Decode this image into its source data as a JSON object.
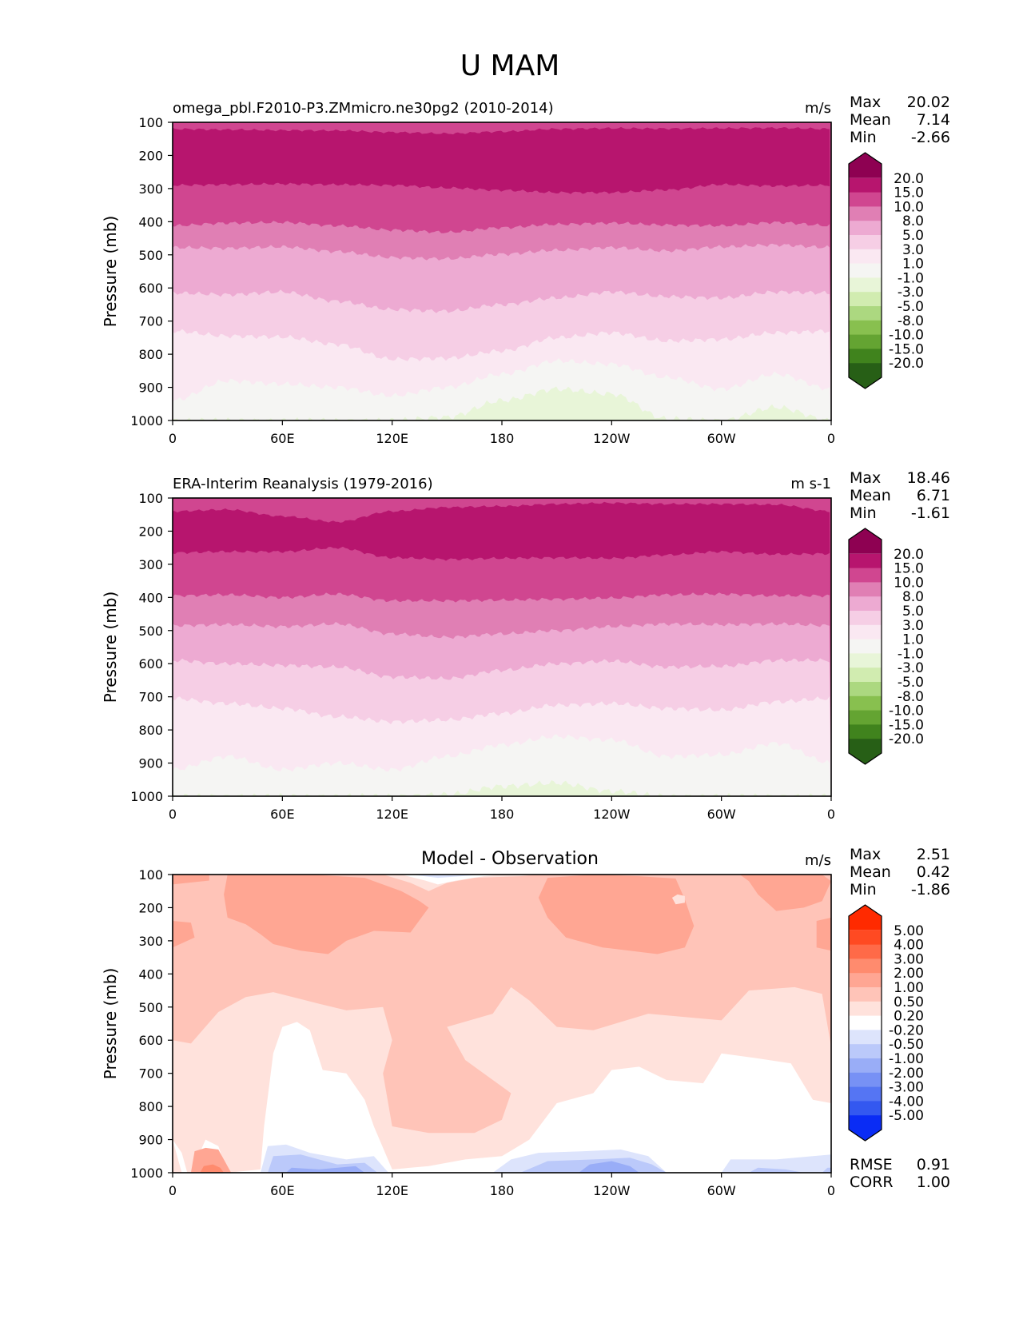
{
  "figure": {
    "title": "U MAM"
  },
  "chart_data": [
    {
      "type": "heatmap",
      "panel": "test",
      "title": "omega_pbl.F2010-P3.ZMmicro.ne30pg2 (2010-2014)",
      "units": "m/s",
      "xlabel": "",
      "ylabel": "Pressure (mb)",
      "xticks": [
        "0",
        "60E",
        "120E",
        "180",
        "120W",
        "60W",
        "0"
      ],
      "xlim": [
        0,
        360
      ],
      "yticks": [
        "100",
        "200",
        "300",
        "400",
        "500",
        "600",
        "700",
        "800",
        "900",
        "1000"
      ],
      "ylim": [
        1000,
        100
      ],
      "stats": {
        "Max": "20.02",
        "Mean": "7.14",
        "Min": "-2.66"
      },
      "colorbar": {
        "levels": [
          "20.0",
          "15.0",
          "10.0",
          "8.0",
          "5.0",
          "3.0",
          "1.0",
          "-1.0",
          "-3.0",
          "-5.0",
          "-8.0",
          "-10.0",
          "-15.0",
          "-20.0"
        ],
        "colors": [
          "#8e0152",
          "#b7156e",
          "#d04690",
          "#e07fb4",
          "#edaad2",
          "#f6cee5",
          "#fae8f2",
          "#f5f5f3",
          "#e8f5d8",
          "#d1ecb0",
          "#acd880",
          "#88c04f",
          "#64a432",
          "#40831d",
          "#275f16"
        ]
      },
      "contour_bands_x": [
        0,
        30,
        60,
        90,
        120,
        150,
        180,
        210,
        240,
        270,
        300,
        330,
        360
      ],
      "band_boundaries": [
        {
          "level": "15.0",
          "p": [
            120,
            122,
            124,
            125,
            130,
            134,
            128,
            120,
            118,
            119,
            118,
            117,
            120
          ]
        },
        {
          "level": "10.0",
          "p": [
            290,
            288,
            286,
            288,
            290,
            298,
            305,
            312,
            312,
            304,
            288,
            292,
            290
          ]
        },
        {
          "level": "8.0",
          "p": [
            412,
            404,
            402,
            412,
            425,
            432,
            418,
            408,
            404,
            410,
            412,
            402,
            412
          ]
        },
        {
          "level": "5.0",
          "p": [
            478,
            480,
            476,
            490,
            508,
            512,
            498,
            486,
            478,
            488,
            476,
            470,
            478
          ]
        },
        {
          "level": "3.0",
          "p": [
            615,
            620,
            612,
            640,
            665,
            670,
            650,
            630,
            612,
            626,
            630,
            612,
            615
          ]
        },
        {
          "level": "1.0",
          "p": [
            730,
            745,
            748,
            770,
            815,
            812,
            790,
            750,
            735,
            760,
            755,
            735,
            730
          ]
        },
        {
          "level": "-1.0",
          "p": [
            940,
            880,
            890,
            900,
            925,
            900,
            860,
            820,
            830,
            870,
            905,
            860,
            905
          ]
        },
        {
          "level": "-3.0",
          "p": [
            1000,
            1000,
            1000,
            1000,
            1000,
            990,
            940,
            905,
            920,
            995,
            1000,
            960,
            1000
          ]
        }
      ]
    },
    {
      "type": "heatmap",
      "panel": "reference",
      "title": "ERA-Interim Reanalysis (1979-2016)",
      "units": "m s-1",
      "xlabel": "",
      "ylabel": "Pressure (mb)",
      "xticks": [
        "0",
        "60E",
        "120E",
        "180",
        "120W",
        "60W",
        "0"
      ],
      "xlim": [
        0,
        360
      ],
      "yticks": [
        "100",
        "200",
        "300",
        "400",
        "500",
        "600",
        "700",
        "800",
        "900",
        "1000"
      ],
      "ylim": [
        1000,
        100
      ],
      "stats": {
        "Max": "18.46",
        "Mean": "6.71",
        "Min": "-1.61"
      },
      "colorbar": {
        "levels": [
          "20.0",
          "15.0",
          "10.0",
          "8.0",
          "5.0",
          "3.0",
          "1.0",
          "-1.0",
          "-3.0",
          "-5.0",
          "-8.0",
          "-10.0",
          "-15.0",
          "-20.0"
        ],
        "colors": [
          "#8e0152",
          "#b7156e",
          "#d04690",
          "#e07fb4",
          "#edaad2",
          "#f6cee5",
          "#fae8f2",
          "#f5f5f3",
          "#e8f5d8",
          "#d1ecb0",
          "#acd880",
          "#88c04f",
          "#64a432",
          "#40831d",
          "#275f16"
        ]
      },
      "contour_bands_x": [
        0,
        30,
        60,
        90,
        120,
        150,
        180,
        210,
        240,
        270,
        300,
        330,
        360
      ],
      "band_boundaries": [
        {
          "level": "15.0",
          "p": [
            140,
            135,
            155,
            172,
            140,
            128,
            125,
            118,
            115,
            118,
            118,
            120,
            140
          ]
        },
        {
          "level": "10.0",
          "p": [
            265,
            262,
            262,
            250,
            280,
            285,
            282,
            280,
            282,
            272,
            262,
            270,
            268
          ]
        },
        {
          "level": "8.0",
          "p": [
            395,
            392,
            400,
            390,
            410,
            410,
            408,
            405,
            402,
            392,
            390,
            395,
            395
          ]
        },
        {
          "level": "5.0",
          "p": [
            485,
            482,
            488,
            480,
            510,
            520,
            510,
            500,
            488,
            480,
            482,
            480,
            485
          ]
        },
        {
          "level": "3.0",
          "p": [
            590,
            600,
            605,
            610,
            640,
            645,
            620,
            600,
            592,
            610,
            608,
            590,
            590
          ]
        },
        {
          "level": "1.0",
          "p": [
            705,
            720,
            735,
            760,
            775,
            770,
            750,
            725,
            720,
            735,
            740,
            715,
            705
          ]
        },
        {
          "level": "-1.0",
          "p": [
            920,
            880,
            920,
            900,
            920,
            880,
            845,
            820,
            830,
            880,
            875,
            840,
            900
          ]
        },
        {
          "level": "-3.0",
          "p": [
            1000,
            1000,
            1000,
            1000,
            1000,
            995,
            970,
            960,
            985,
            1000,
            1000,
            1000,
            1000
          ]
        }
      ]
    },
    {
      "type": "heatmap",
      "panel": "difference",
      "title": "Model - Observation",
      "units": "m/s",
      "xlabel": "",
      "ylabel": "Pressure (mb)",
      "xticks": [
        "0",
        "60E",
        "120E",
        "180",
        "120W",
        "60W",
        "0"
      ],
      "xlim": [
        0,
        360
      ],
      "yticks": [
        "100",
        "200",
        "300",
        "400",
        "500",
        "600",
        "700",
        "800",
        "900",
        "1000"
      ],
      "ylim": [
        1000,
        100
      ],
      "stats": {
        "Max": "2.51",
        "Mean": "0.42",
        "Min": "-1.86"
      },
      "metrics": {
        "RMSE": "0.91",
        "CORR": "1.00"
      },
      "colorbar": {
        "levels": [
          "5.00",
          "4.00",
          "3.00",
          "2.00",
          "1.00",
          "0.50",
          "0.20",
          "-0.20",
          "-0.50",
          "-1.00",
          "-2.00",
          "-3.00",
          "-4.00",
          "-5.00"
        ],
        "colors": [
          "#ff2a00",
          "#ff4a22",
          "#ff6a48",
          "#ff8b6e",
          "#ffa693",
          "#ffc4b8",
          "#ffe2dc",
          "#ffffff",
          "#dde4fc",
          "#bbc9fa",
          "#99adf7",
          "#7791f5",
          "#5575f3",
          "#3358f0",
          "#0a2cf5"
        ]
      },
      "contour_bands_x": [
        0,
        20,
        40,
        60,
        80,
        100,
        120,
        140,
        160,
        180,
        200,
        220,
        240,
        260,
        280,
        300,
        320,
        340,
        360
      ],
      "regions": [
        {
          "range": "1.00 to 2.00",
          "desc": "upper troposphere maxima near 20E-120E and 150W-60W, 100-400 mb"
        },
        {
          "range": "0.50 to 1.00",
          "desc": "broad band 100-650 mb, lobe down to ~850 mb near 120E-180"
        },
        {
          "range": "0.20 to 0.50",
          "desc": "mid-troposphere 450-900 mb"
        },
        {
          "range": "-0.20 to 0.20",
          "desc": "lower troposphere 650-1000 mb"
        },
        {
          "range": "-1.00 to -0.20",
          "desc": "near-surface 850-1000 mb near 50E-120E and 150W-50W"
        },
        {
          "range": "1.00 to 3.00",
          "desc": "near-surface maximum near 10E-30E, 900-1000 mb"
        }
      ]
    }
  ]
}
